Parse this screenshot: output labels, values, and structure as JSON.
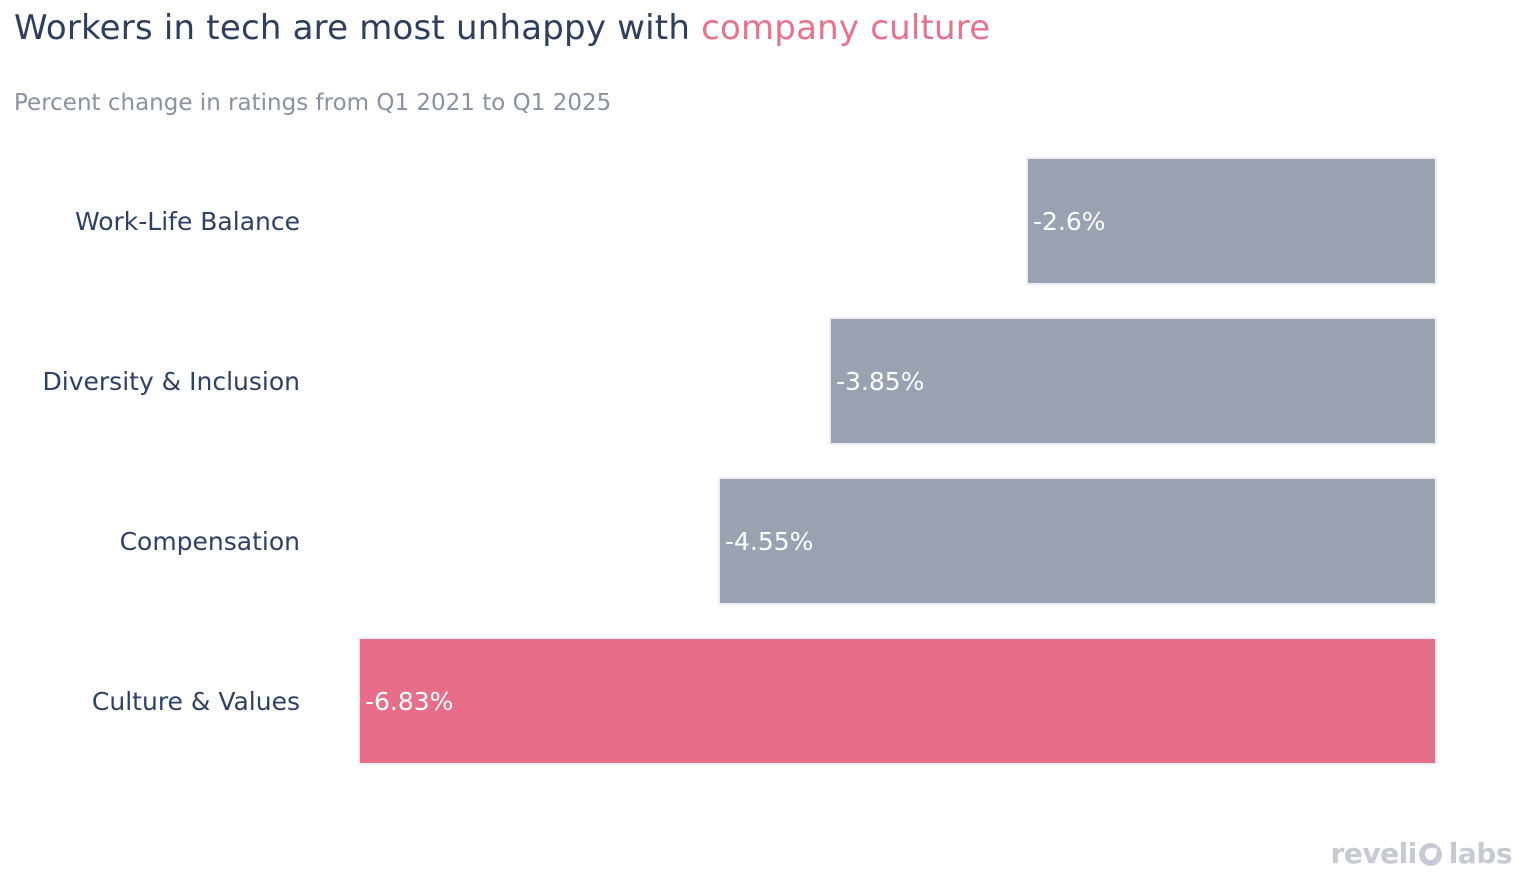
{
  "header": {
    "title_prefix": "Workers in tech are most unhappy with ",
    "title_highlight": "company culture",
    "subtitle": "Percent change in ratings from Q1 2021 to Q1 2025"
  },
  "chart_data": {
    "type": "bar",
    "orientation": "horizontal",
    "title": "Workers in tech are most unhappy with company culture",
    "subtitle": "Percent change in ratings from Q1 2021 to Q1 2025",
    "categories": [
      "Work-Life Balance",
      "Diversity & Inclusion",
      "Compensation",
      "Culture & Values"
    ],
    "values": [
      -2.6,
      -3.85,
      -4.55,
      -6.83
    ],
    "value_labels": [
      "-2.6%",
      "-3.85%",
      "-4.55%",
      "-6.83%"
    ],
    "xlabel": "",
    "ylabel": "",
    "xlim": [
      -6.9,
      0
    ],
    "grid": false,
    "legend": false,
    "bar_color": "#9aa2b2",
    "highlight_color": "#e76d89",
    "highlight_index": 3,
    "value_label_color": "#ffffff",
    "category_label_color": "#2d4065"
  },
  "footer": {
    "logo_text": "revelio labs",
    "logo_pre": "reveli",
    "logo_icon": "revelio-o-mark",
    "logo_post": "labs"
  }
}
